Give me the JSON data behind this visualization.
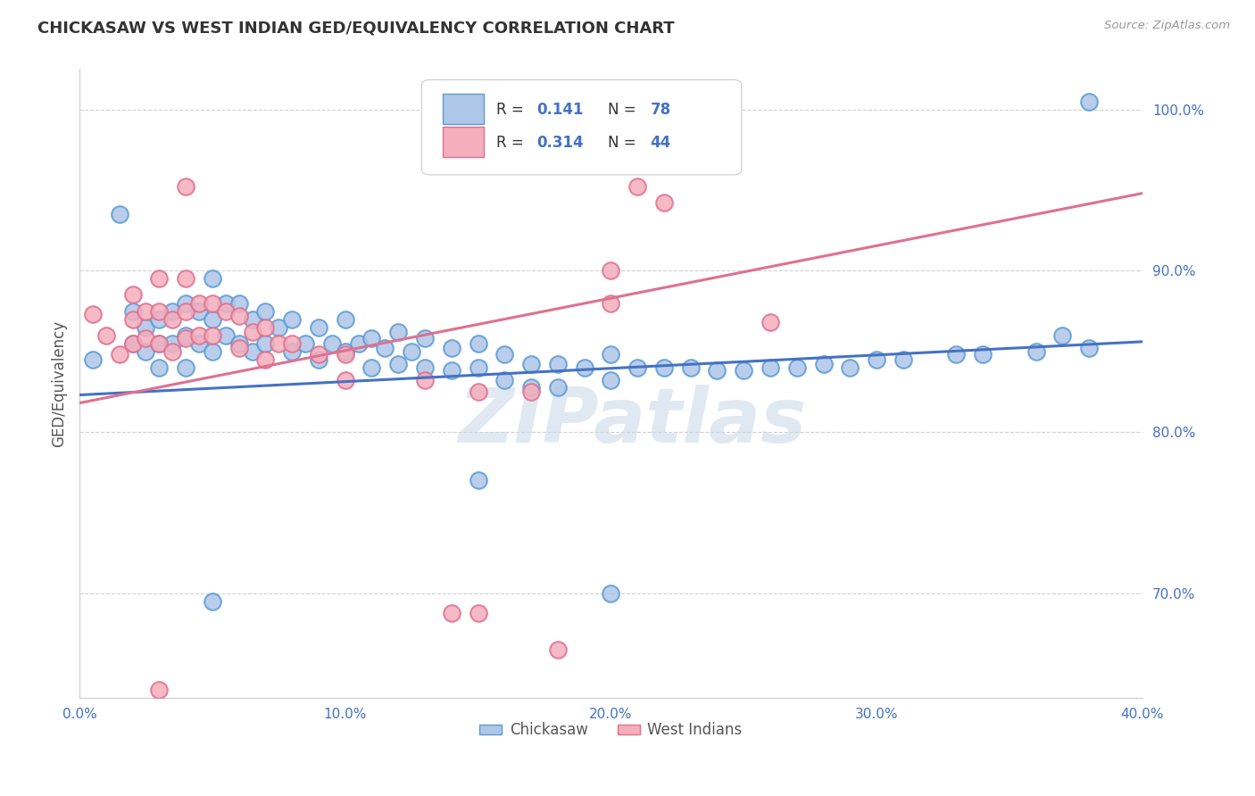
{
  "title": "CHICKASAW VS WEST INDIAN GED/EQUIVALENCY CORRELATION CHART",
  "source_text": "Source: ZipAtlas.com",
  "ylabel": "GED/Equivalency",
  "xlim": [
    0.0,
    0.4
  ],
  "ylim": [
    0.635,
    1.025
  ],
  "xticks": [
    0.0,
    0.05,
    0.1,
    0.15,
    0.2,
    0.25,
    0.3,
    0.35,
    0.4
  ],
  "xticklabels": [
    "0.0%",
    "",
    "10.0%",
    "",
    "20.0%",
    "",
    "30.0%",
    "",
    "40.0%"
  ],
  "yticks": [
    0.7,
    0.8,
    0.9,
    1.0
  ],
  "yticklabels": [
    "70.0%",
    "80.0%",
    "90.0%",
    "100.0%"
  ],
  "chickasaw_color": "#aec6e8",
  "chickasaw_edge": "#5b9bd5",
  "westindian_color": "#f4aebc",
  "westindian_edge": "#e07090",
  "blue_line_color": "#4472c4",
  "pink_line_color": "#e07090",
  "legend_v1": "0.141",
  "legend_nv1": "78",
  "legend_v2": "0.314",
  "legend_nv2": "44",
  "watermark": "ZIPatlas",
  "watermark_color": "#c8d8e8",
  "background_color": "#ffffff",
  "grid_color": "#cccccc",
  "title_color": "#333333",
  "axis_label_color": "#555555",
  "tick_color": "#4472c4",
  "blue_line_x0": 0.0,
  "blue_line_y0": 0.823,
  "blue_line_x1": 0.4,
  "blue_line_y1": 0.856,
  "pink_line_x0": 0.0,
  "pink_line_x1": 0.4,
  "pink_line_y0": 0.818,
  "pink_line_y1": 0.948,
  "chickasaw_x": [
    0.005,
    0.015,
    0.02,
    0.02,
    0.025,
    0.025,
    0.03,
    0.03,
    0.03,
    0.035,
    0.035,
    0.04,
    0.04,
    0.04,
    0.045,
    0.045,
    0.05,
    0.05,
    0.05,
    0.055,
    0.055,
    0.06,
    0.06,
    0.065,
    0.065,
    0.07,
    0.07,
    0.075,
    0.08,
    0.08,
    0.085,
    0.09,
    0.09,
    0.095,
    0.1,
    0.1,
    0.105,
    0.11,
    0.11,
    0.115,
    0.12,
    0.12,
    0.125,
    0.13,
    0.13,
    0.14,
    0.14,
    0.15,
    0.15,
    0.16,
    0.16,
    0.17,
    0.17,
    0.18,
    0.18,
    0.19,
    0.2,
    0.2,
    0.21,
    0.22,
    0.23,
    0.24,
    0.25,
    0.26,
    0.27,
    0.28,
    0.29,
    0.3,
    0.31,
    0.33,
    0.34,
    0.36,
    0.38,
    0.38,
    0.05,
    0.15,
    0.2,
    0.37
  ],
  "chickasaw_y": [
    0.845,
    0.935,
    0.875,
    0.855,
    0.865,
    0.85,
    0.87,
    0.855,
    0.84,
    0.875,
    0.855,
    0.88,
    0.86,
    0.84,
    0.875,
    0.855,
    0.895,
    0.87,
    0.85,
    0.88,
    0.86,
    0.88,
    0.855,
    0.87,
    0.85,
    0.875,
    0.855,
    0.865,
    0.87,
    0.85,
    0.855,
    0.865,
    0.845,
    0.855,
    0.87,
    0.85,
    0.855,
    0.858,
    0.84,
    0.852,
    0.862,
    0.842,
    0.85,
    0.858,
    0.84,
    0.852,
    0.838,
    0.855,
    0.84,
    0.848,
    0.832,
    0.842,
    0.828,
    0.842,
    0.828,
    0.84,
    0.848,
    0.832,
    0.84,
    0.84,
    0.84,
    0.838,
    0.838,
    0.84,
    0.84,
    0.842,
    0.84,
    0.845,
    0.845,
    0.848,
    0.848,
    0.85,
    0.852,
    1.005,
    0.695,
    0.77,
    0.7,
    0.86
  ],
  "westindian_x": [
    0.005,
    0.01,
    0.015,
    0.02,
    0.02,
    0.02,
    0.025,
    0.025,
    0.03,
    0.03,
    0.03,
    0.035,
    0.035,
    0.04,
    0.04,
    0.04,
    0.045,
    0.045,
    0.05,
    0.05,
    0.055,
    0.06,
    0.06,
    0.065,
    0.07,
    0.07,
    0.075,
    0.08,
    0.09,
    0.1,
    0.1,
    0.13,
    0.15,
    0.18,
    0.2,
    0.2,
    0.22,
    0.26,
    0.14,
    0.03,
    0.04,
    0.15,
    0.17,
    0.21
  ],
  "westindian_y": [
    0.873,
    0.86,
    0.848,
    0.885,
    0.87,
    0.855,
    0.875,
    0.858,
    0.895,
    0.875,
    0.855,
    0.87,
    0.85,
    0.895,
    0.875,
    0.858,
    0.88,
    0.86,
    0.88,
    0.86,
    0.875,
    0.872,
    0.852,
    0.862,
    0.865,
    0.845,
    0.855,
    0.855,
    0.848,
    0.848,
    0.832,
    0.832,
    0.825,
    0.665,
    0.9,
    0.88,
    0.942,
    0.868,
    0.688,
    0.64,
    0.952,
    0.688,
    0.825,
    0.952
  ]
}
